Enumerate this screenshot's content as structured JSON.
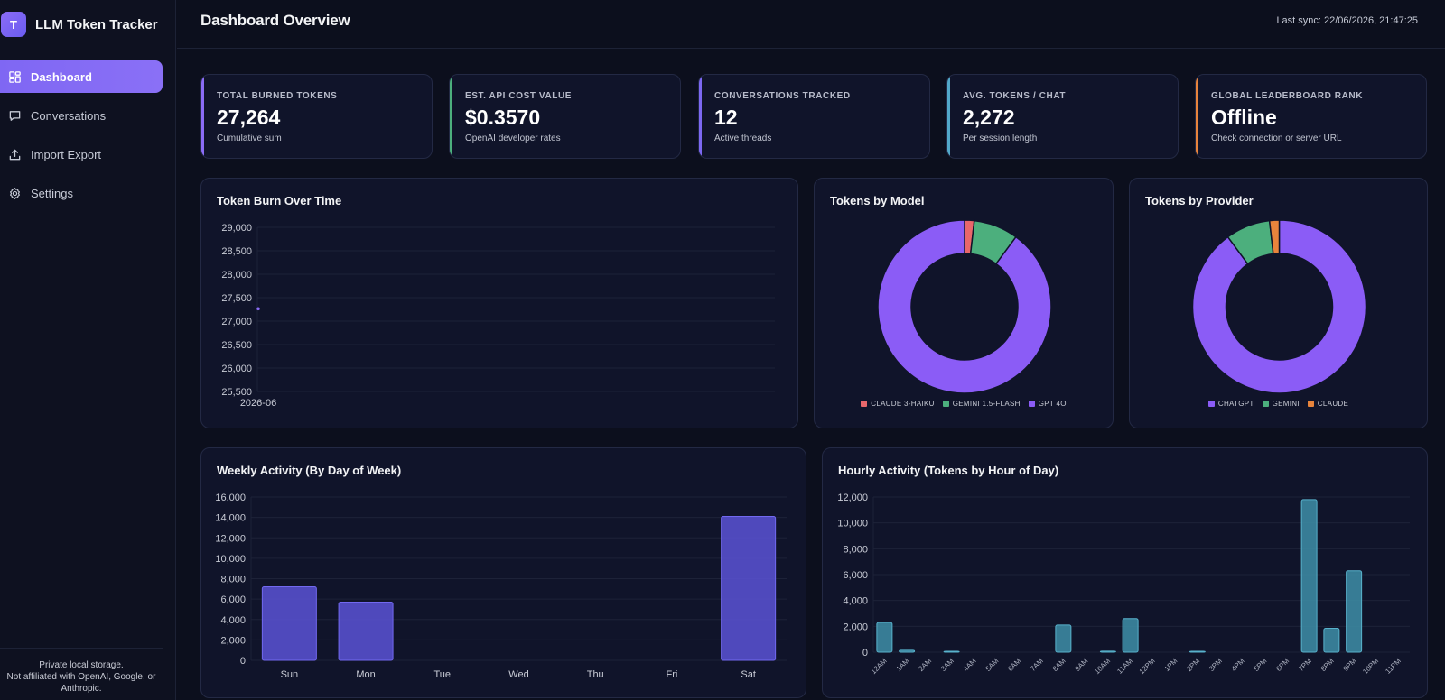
{
  "app": {
    "brand_initial": "T",
    "brand_title": "LLM Token Tracker"
  },
  "sidebar": {
    "items": [
      {
        "label": "Dashboard",
        "icon": "grid-icon",
        "active": true
      },
      {
        "label": "Conversations",
        "icon": "chat-bubble-icon",
        "active": false
      },
      {
        "label": "Import Export",
        "icon": "upload-icon",
        "active": false
      },
      {
        "label": "Settings",
        "icon": "gear-icon",
        "active": false
      }
    ],
    "footer_line1": "Private local storage.",
    "footer_line2": "Not affiliated with OpenAI, Google, or",
    "footer_line3": "Anthropic."
  },
  "header": {
    "title": "Dashboard Overview",
    "last_sync": "Last sync: 22/06/2026, 21:47:25"
  },
  "stats": [
    {
      "label": "TOTAL BURNED TOKENS",
      "value": "27,264",
      "sub": "Cumulative sum",
      "accent": "#8b6cf6"
    },
    {
      "label": "EST. API COST VALUE",
      "value": "$0.3570",
      "sub": "OpenAI developer rates",
      "accent": "#4caf7d"
    },
    {
      "label": "CONVERSATIONS TRACKED",
      "value": "12",
      "sub": "Active threads",
      "accent": "#7c68f2"
    },
    {
      "label": "AVG. TOKENS / CHAT",
      "value": "2,272",
      "sub": "Per session length",
      "accent": "#52a8c9"
    },
    {
      "label": "GLOBAL LEADERBOARD RANK",
      "value": "Offline",
      "sub": "Check connection or server URL",
      "accent": "#e8843c"
    }
  ],
  "chart_data": [
    {
      "type": "line",
      "title": "Token Burn Over Time",
      "x": [
        "2026-06"
      ],
      "values": [
        27264
      ],
      "ylim": [
        25500,
        29000
      ],
      "yticks": [
        29000,
        28500,
        28000,
        27500,
        27000,
        26500,
        26000,
        25500
      ],
      "ytick_labels": [
        "29,000",
        "28,500",
        "28,000",
        "27,500",
        "27,000",
        "26,500",
        "26,000",
        "25,500"
      ],
      "color": "#8b6cf6",
      "grid": true
    },
    {
      "type": "pie",
      "title": "Tokens by Model",
      "categories": [
        "CLAUDE 3-HAIKU",
        "GEMINI 1.5-FLASH",
        "GPT 4O"
      ],
      "values": [
        1.8,
        8.3,
        89.9
      ],
      "colors": [
        "#e8676b",
        "#4caf7d",
        "#8b5cf6"
      ],
      "legend": "bottom"
    },
    {
      "type": "pie",
      "title": "Tokens by Provider",
      "categories": [
        "CHATGPT",
        "GEMINI",
        "CLAUDE"
      ],
      "values": [
        89.9,
        8.3,
        1.8
      ],
      "colors": [
        "#8b5cf6",
        "#4caf7d",
        "#e8843c"
      ],
      "legend": "bottom"
    },
    {
      "type": "bar",
      "title": "Weekly Activity (By Day of Week)",
      "categories": [
        "Sun",
        "Mon",
        "Tue",
        "Wed",
        "Thu",
        "Fri",
        "Sat"
      ],
      "values": [
        7200,
        5700,
        0,
        0,
        0,
        0,
        14100
      ],
      "ylim": [
        0,
        16000
      ],
      "yticks": [
        16000,
        14000,
        12000,
        10000,
        8000,
        6000,
        4000,
        2000,
        0
      ],
      "ytick_labels": [
        "16,000",
        "14,000",
        "12,000",
        "10,000",
        "8,000",
        "6,000",
        "4,000",
        "2,000",
        "0"
      ],
      "color": "#5b52d6",
      "grid": true
    },
    {
      "type": "bar",
      "title": "Hourly Activity (Tokens by Hour of Day)",
      "categories": [
        "12AM",
        "1AM",
        "2AM",
        "3AM",
        "4AM",
        "5AM",
        "6AM",
        "7AM",
        "8AM",
        "9AM",
        "10AM",
        "11AM",
        "12PM",
        "1PM",
        "2PM",
        "3PM",
        "4PM",
        "5PM",
        "6PM",
        "7PM",
        "8PM",
        "9PM",
        "10PM",
        "11PM"
      ],
      "values": [
        2300,
        150,
        0,
        40,
        0,
        0,
        0,
        0,
        2100,
        0,
        80,
        2600,
        0,
        0,
        30,
        0,
        0,
        0,
        0,
        11800,
        1850,
        6300,
        0,
        0
      ],
      "ylim": [
        0,
        12000
      ],
      "yticks": [
        12000,
        10000,
        8000,
        6000,
        4000,
        2000,
        0
      ],
      "ytick_labels": [
        "12,000",
        "10,000",
        "8,000",
        "6,000",
        "4,000",
        "2,000",
        "0"
      ],
      "color": "#3e8ea8",
      "grid": true
    }
  ]
}
